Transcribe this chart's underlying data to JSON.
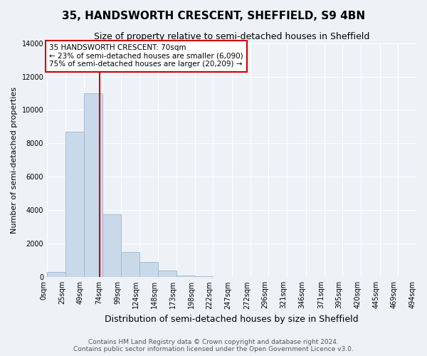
{
  "title": "35, HANDSWORTH CRESCENT, SHEFFIELD, S9 4BN",
  "subtitle": "Size of property relative to semi-detached houses in Sheffield",
  "bar_values": [
    300,
    8700,
    11000,
    3750,
    1500,
    900,
    400,
    100,
    50,
    0,
    0,
    0,
    0,
    0,
    0,
    0,
    0,
    0,
    0
  ],
  "bin_edges": [
    0,
    25,
    49,
    74,
    99,
    124,
    148,
    173,
    198,
    222,
    247,
    272,
    296,
    321,
    346,
    371,
    395,
    420,
    445,
    469,
    494
  ],
  "tick_labels": [
    "0sqm",
    "25sqm",
    "49sqm",
    "74sqm",
    "99sqm",
    "124sqm",
    "148sqm",
    "173sqm",
    "198sqm",
    "222sqm",
    "247sqm",
    "272sqm",
    "296sqm",
    "321sqm",
    "346sqm",
    "371sqm",
    "395sqm",
    "420sqm",
    "445sqm",
    "469sqm",
    "494sqm"
  ],
  "xlabel": "Distribution of semi-detached houses by size in Sheffield",
  "ylabel": "Number of semi-detached properties",
  "ylim": [
    0,
    14000
  ],
  "yticks": [
    0,
    2000,
    4000,
    6000,
    8000,
    10000,
    12000,
    14000
  ],
  "bar_color": "#c9d9ea",
  "bar_edgecolor": "#9ab5cc",
  "property_line_x": 70,
  "property_line_color": "#cc0000",
  "annotation_title": "35 HANDSWORTH CRESCENT: 70sqm",
  "annotation_line1": "← 23% of semi-detached houses are smaller (6,090)",
  "annotation_line2": "75% of semi-detached houses are larger (20,209) →",
  "annotation_box_color": "#ffffff",
  "annotation_box_edgecolor": "#cc0000",
  "footer_line1": "Contains HM Land Registry data © Crown copyright and database right 2024.",
  "footer_line2": "Contains public sector information licensed under the Open Government Licence v3.0.",
  "background_color": "#eef2f7",
  "grid_color": "#ffffff",
  "title_fontsize": 11,
  "subtitle_fontsize": 9,
  "xlabel_fontsize": 9,
  "ylabel_fontsize": 8,
  "tick_fontsize": 7,
  "footer_fontsize": 6.5,
  "annotation_fontsize": 7.5
}
